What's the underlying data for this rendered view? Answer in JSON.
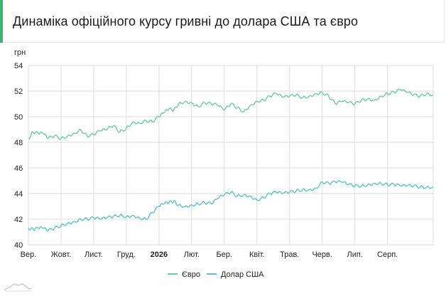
{
  "page": {
    "title": "Динаміка офіційного курсу гривні до долара США та євро"
  },
  "colors": {
    "accent": "#3cb371",
    "euro": "#6fce9f",
    "usd": "#5ec3c7",
    "grid": "#dedede",
    "text": "#222222",
    "logo": "#cccccc"
  },
  "chart_data": {
    "type": "line",
    "title": "Динаміка офіційного курсу гривні до долара США та євро",
    "ylabel": "грн",
    "xlabel": "",
    "ylim": [
      40,
      54
    ],
    "yticks": [
      40,
      42,
      44,
      46,
      48,
      50,
      52,
      54
    ],
    "xticks": [
      {
        "label": "Вер.",
        "bold": false
      },
      {
        "label": "Жовт.",
        "bold": false
      },
      {
        "label": "Лист.",
        "bold": false
      },
      {
        "label": "Груд.",
        "bold": false
      },
      {
        "label": "2026",
        "bold": true
      },
      {
        "label": "Лют.",
        "bold": false
      },
      {
        "label": "Бер.",
        "bold": false
      },
      {
        "label": "Квіт.",
        "bold": false
      },
      {
        "label": "Трав.",
        "bold": false
      },
      {
        "label": "Черв.",
        "bold": false
      },
      {
        "label": "Лип.",
        "bold": false
      },
      {
        "label": "Серп.",
        "bold": false
      }
    ],
    "x_months_span": [
      0,
      12.4
    ],
    "legend_position": "bottom",
    "grid": true,
    "series": [
      {
        "name": "Євро",
        "color": "#6fce9f",
        "x": [
          0,
          0.15,
          0.3,
          0.45,
          0.6,
          0.8,
          1.0,
          1.2,
          1.4,
          1.6,
          1.8,
          2.0,
          2.2,
          2.4,
          2.6,
          2.8,
          3.0,
          3.2,
          3.4,
          3.6,
          3.8,
          4.0,
          4.15,
          4.3,
          4.45,
          4.6,
          4.8,
          5.0,
          5.2,
          5.4,
          5.6,
          5.8,
          6.0,
          6.2,
          6.4,
          6.6,
          6.8,
          7.0,
          7.2,
          7.4,
          7.6,
          7.8,
          8.0,
          8.2,
          8.4,
          8.6,
          8.8,
          9.0,
          9.2,
          9.4,
          9.6,
          9.8,
          10.0,
          10.2,
          10.4,
          10.6,
          10.8,
          11.0,
          11.2,
          11.4,
          11.6,
          11.8,
          12.0,
          12.2,
          12.4
        ],
        "y": [
          48.3,
          48.8,
          48.7,
          48.7,
          48.3,
          48.5,
          48.3,
          48.5,
          48.7,
          49.0,
          48.5,
          48.6,
          48.9,
          49.0,
          49.3,
          48.8,
          49.1,
          49.6,
          49.5,
          49.7,
          49.6,
          50.0,
          50.3,
          50.6,
          50.5,
          51.0,
          51.2,
          51.1,
          50.8,
          51.1,
          51.0,
          50.9,
          50.5,
          51.0,
          50.7,
          50.4,
          50.9,
          51.2,
          51.3,
          51.6,
          51.8,
          51.5,
          51.6,
          51.7,
          51.5,
          51.6,
          51.8,
          51.9,
          51.6,
          51.0,
          51.2,
          51.1,
          51.0,
          51.3,
          51.4,
          51.3,
          51.6,
          51.8,
          51.9,
          52.1,
          51.9,
          51.7,
          51.6,
          51.8,
          51.7
        ]
      },
      {
        "name": "Долар США",
        "color": "#5ec3c7",
        "x": [
          0,
          0.15,
          0.3,
          0.45,
          0.6,
          0.8,
          1.0,
          1.2,
          1.4,
          1.6,
          1.8,
          2.0,
          2.2,
          2.4,
          2.6,
          2.8,
          3.0,
          3.2,
          3.4,
          3.6,
          3.8,
          4.0,
          4.15,
          4.3,
          4.45,
          4.6,
          4.8,
          5.0,
          5.2,
          5.4,
          5.6,
          5.8,
          6.0,
          6.2,
          6.4,
          6.6,
          6.8,
          7.0,
          7.2,
          7.4,
          7.6,
          7.8,
          8.0,
          8.2,
          8.4,
          8.6,
          8.8,
          9.0,
          9.2,
          9.4,
          9.6,
          9.8,
          10.0,
          10.2,
          10.4,
          10.6,
          10.8,
          11.0,
          11.2,
          11.4,
          11.6,
          11.8,
          12.0,
          12.2,
          12.4
        ],
        "y": [
          41.3,
          41.2,
          41.3,
          41.3,
          41.1,
          41.3,
          41.5,
          41.7,
          41.8,
          42.0,
          42.0,
          42.1,
          42.0,
          42.1,
          42.2,
          42.3,
          42.2,
          42.3,
          42.1,
          42.0,
          42.5,
          43.0,
          43.2,
          43.3,
          43.4,
          43.1,
          43.0,
          43.1,
          43.2,
          43.3,
          43.2,
          43.6,
          43.9,
          44.1,
          43.8,
          43.9,
          43.8,
          43.5,
          43.7,
          44.0,
          44.1,
          44.0,
          44.1,
          44.2,
          44.3,
          44.3,
          44.4,
          44.9,
          44.8,
          44.9,
          44.9,
          44.7,
          44.6,
          44.6,
          44.7,
          44.8,
          44.8,
          44.7,
          44.7,
          44.6,
          44.6,
          44.6,
          44.5,
          44.5,
          44.5
        ]
      }
    ]
  }
}
